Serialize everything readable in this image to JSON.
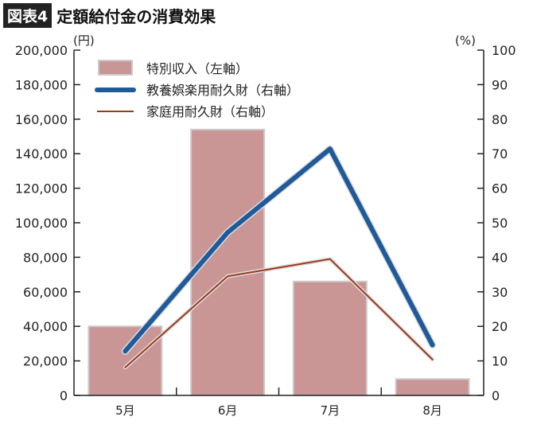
{
  "title": {
    "badge": "図表4",
    "text": "定額給付金の消費効果"
  },
  "chart_data": {
    "type": "bar+line",
    "categories": [
      "5月",
      "6月",
      "7月",
      "8月"
    ],
    "left_axis": {
      "unit": "(円)",
      "ylim": [
        0,
        200000
      ],
      "ticks": [
        "0",
        "20,000",
        "40,000",
        "60,000",
        "80,000",
        "100,000",
        "120,000",
        "140,000",
        "160,000",
        "180,000",
        "200,000"
      ]
    },
    "right_axis": {
      "unit": "(%)",
      "ylim": [
        0,
        100
      ],
      "ticks": [
        "0",
        "10",
        "20",
        "30",
        "40",
        "50",
        "60",
        "70",
        "80",
        "90",
        "100"
      ]
    },
    "grid": false,
    "legend_position": "top-left",
    "series": [
      {
        "name": "特別収入（左軸）",
        "type": "bar",
        "axis": "left",
        "color": "#c99595",
        "values": [
          40000,
          154000,
          66000,
          9500
        ]
      },
      {
        "name": "教養娯楽用耐久財（右軸）",
        "type": "line",
        "axis": "right",
        "color": "#1f5a9a",
        "values": [
          12.8,
          47.2,
          71.4,
          14.6
        ]
      },
      {
        "name": "家庭用耐久財（右軸）",
        "type": "line",
        "axis": "right",
        "color": "#9a3a1a",
        "values": [
          8.1,
          34.5,
          39.5,
          10.4
        ]
      }
    ]
  }
}
